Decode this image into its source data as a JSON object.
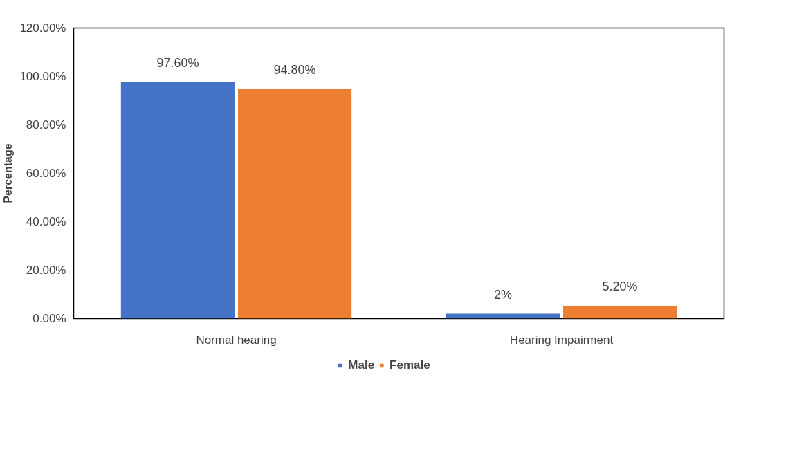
{
  "chart_data": {
    "type": "bar",
    "ylabel": "Percentage",
    "categories": [
      "Normal hearing",
      "Hearing Impairment"
    ],
    "series": [
      {
        "name": "Male",
        "color": "#4472c4",
        "values": [
          97.6,
          2
        ],
        "value_labels": [
          "97.60%",
          "2%"
        ]
      },
      {
        "name": "Female",
        "color": "#ed7d31",
        "values": [
          94.8,
          5.2
        ],
        "value_labels": [
          "94.80%",
          "5.20%"
        ]
      }
    ],
    "ylim": [
      0,
      120
    ],
    "yticks": [
      {
        "value": 0,
        "label": "0.00%"
      },
      {
        "value": 20,
        "label": "20.00%"
      },
      {
        "value": 40,
        "label": "40.00%"
      },
      {
        "value": 60,
        "label": "60.00%"
      },
      {
        "value": 80,
        "label": "80.00%"
      },
      {
        "value": 100,
        "label": "100.00%"
      },
      {
        "value": 120,
        "label": "120.00%"
      }
    ],
    "grid": false,
    "legend": "bottom"
  }
}
